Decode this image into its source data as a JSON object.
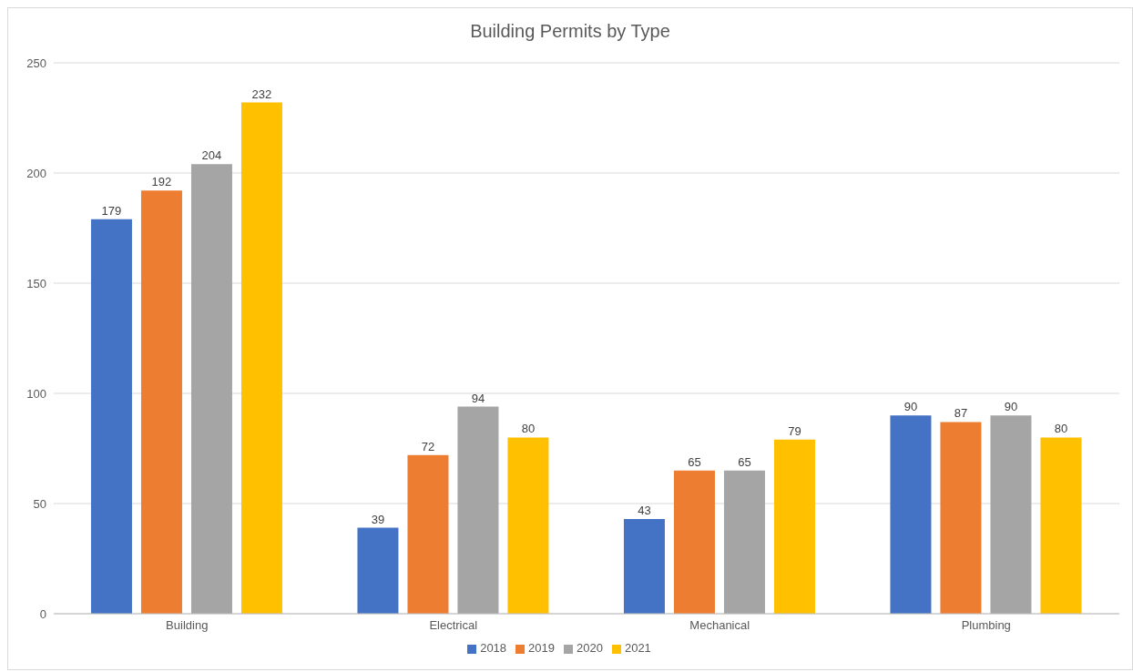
{
  "chart_data": {
    "type": "bar",
    "title": "Building Permits by Type",
    "categories": [
      "Building",
      "Electrical",
      "Mechanical",
      "Plumbing"
    ],
    "series": [
      {
        "name": "2018",
        "color": "#4472c4",
        "values": [
          179,
          39,
          43,
          90
        ]
      },
      {
        "name": "2019",
        "color": "#ed7d31",
        "values": [
          192,
          72,
          65,
          87
        ]
      },
      {
        "name": "2020",
        "color": "#a5a5a5",
        "values": [
          204,
          94,
          65,
          90
        ]
      },
      {
        "name": "2021",
        "color": "#ffc000",
        "values": [
          232,
          80,
          79,
          80
        ]
      }
    ],
    "ylim": [
      0,
      250
    ],
    "yticks": [
      0,
      50,
      100,
      150,
      200,
      250
    ],
    "grid": "y",
    "legend": "bottom",
    "data_labels": true
  }
}
